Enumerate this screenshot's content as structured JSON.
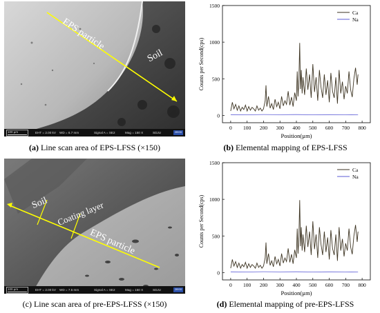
{
  "captions": [
    {
      "letter": "(a)",
      "text": " Line scan area of EPS-LFSS (×150)"
    },
    {
      "letter": "(b)",
      "text": " Elemental mapping of EPS-LFSS"
    },
    {
      "letter": "(c)",
      "text": " Line scan area of pre-EPS-LFSS (×150)",
      "letter_bold": false
    },
    {
      "letter": "(d)",
      "text": " Elemental mapping of pre-EPS-LFSS"
    }
  ],
  "sem_a": {
    "labels": {
      "particle": "EPS particle",
      "soil": "Soil"
    },
    "info": {
      "scale": "100 µm",
      "eht": "EHT = 2.00 kV",
      "wd": "WD = 6.7 mm",
      "signal": "Signal A = SE2",
      "mag": "Mag = 150 X",
      "org": "SDJU",
      "logo": "ZEISS"
    }
  },
  "sem_c": {
    "labels": {
      "soil": "Soil",
      "coating": "Coating layer",
      "particle": "EPS particle"
    },
    "info": {
      "scale": "100 µm",
      "eht": "EHT = 2.00 kV",
      "wd": "WD = 7.5 mm",
      "signal": "Signal A = SE2",
      "mag": "Mag = 150 X",
      "org": "SDJU",
      "logo": "ZEISS"
    }
  },
  "chart_data": [
    {
      "type": "line",
      "xlabel": "Position(µm)",
      "ylabel": "Counts per Second(cps)",
      "xlim": [
        -50,
        850
      ],
      "ylim": [
        -100,
        1500
      ],
      "xticks": [
        0,
        100,
        200,
        300,
        400,
        500,
        600,
        700,
        800
      ],
      "yticks": [
        0,
        500,
        1000,
        1500
      ],
      "legend_position": "top-right",
      "series": [
        {
          "name": "Ca",
          "color": "#3b3220",
          "x": [
            0,
            10,
            20,
            30,
            40,
            50,
            60,
            70,
            80,
            90,
            100,
            110,
            120,
            130,
            140,
            150,
            160,
            170,
            180,
            190,
            200,
            210,
            215,
            220,
            230,
            240,
            250,
            260,
            270,
            280,
            290,
            300,
            310,
            320,
            330,
            340,
            350,
            360,
            370,
            380,
            390,
            400,
            405,
            410,
            415,
            420,
            425,
            430,
            435,
            440,
            450,
            460,
            470,
            480,
            490,
            500,
            510,
            520,
            530,
            540,
            550,
            560,
            570,
            580,
            590,
            600,
            610,
            620,
            630,
            640,
            650,
            660,
            670,
            680,
            690,
            700,
            710,
            720,
            730,
            740,
            750,
            760,
            770,
            775
          ],
          "y": [
            60,
            180,
            90,
            150,
            70,
            130,
            60,
            110,
            80,
            140,
            60,
            120,
            70,
            110,
            90,
            60,
            130,
            70,
            100,
            60,
            90,
            200,
            410,
            120,
            260,
            100,
            160,
            80,
            220,
            120,
            180,
            90,
            260,
            130,
            200,
            150,
            330,
            140,
            250,
            120,
            310,
            200,
            600,
            260,
            480,
            990,
            360,
            620,
            300,
            520,
            280,
            640,
            350,
            560,
            240,
            700,
            320,
            520,
            200,
            620,
            380,
            240,
            560,
            280,
            480,
            180,
            580,
            330,
            240,
            520,
            160,
            620,
            300,
            460,
            220,
            400,
            300,
            600,
            350,
            250,
            500,
            650,
            420,
            560
          ]
        },
        {
          "name": "Na",
          "color": "#5b5bd6",
          "x": [
            0,
            100,
            200,
            300,
            400,
            500,
            600,
            700,
            775
          ],
          "y": [
            10,
            8,
            12,
            9,
            11,
            8,
            10,
            9,
            8
          ]
        }
      ]
    },
    {
      "type": "line",
      "xlabel": "Position(µm)",
      "ylabel": "Counts per Second(cps)",
      "xlim": [
        -50,
        850
      ],
      "ylim": [
        -100,
        1500
      ],
      "xticks": [
        0,
        100,
        200,
        300,
        400,
        500,
        600,
        700,
        800
      ],
      "yticks": [
        0,
        500,
        1000,
        1500
      ],
      "legend_position": "top-right",
      "series": [
        {
          "name": "Ca",
          "color": "#3b3220",
          "x": [
            0,
            10,
            20,
            30,
            40,
            50,
            60,
            70,
            80,
            90,
            100,
            110,
            120,
            130,
            140,
            150,
            160,
            170,
            180,
            190,
            200,
            210,
            215,
            220,
            230,
            240,
            250,
            260,
            270,
            280,
            290,
            300,
            310,
            320,
            330,
            340,
            350,
            360,
            370,
            380,
            390,
            400,
            405,
            410,
            415,
            420,
            425,
            430,
            435,
            440,
            450,
            460,
            470,
            480,
            490,
            500,
            510,
            520,
            530,
            540,
            550,
            560,
            570,
            580,
            590,
            600,
            610,
            620,
            630,
            640,
            650,
            660,
            670,
            680,
            690,
            700,
            710,
            720,
            730,
            740,
            750,
            760,
            770,
            775
          ],
          "y": [
            60,
            180,
            90,
            150,
            70,
            130,
            60,
            110,
            80,
            140,
            60,
            120,
            70,
            110,
            90,
            60,
            130,
            70,
            100,
            60,
            90,
            200,
            410,
            120,
            260,
            100,
            160,
            80,
            220,
            120,
            180,
            90,
            260,
            130,
            200,
            150,
            330,
            140,
            250,
            120,
            310,
            200,
            600,
            260,
            480,
            990,
            360,
            620,
            300,
            520,
            280,
            640,
            350,
            560,
            240,
            700,
            320,
            520,
            200,
            620,
            380,
            240,
            560,
            280,
            480,
            180,
            580,
            330,
            240,
            520,
            160,
            620,
            300,
            460,
            220,
            400,
            300,
            600,
            350,
            250,
            500,
            650,
            420,
            560
          ]
        },
        {
          "name": "Na",
          "color": "#5b5bd6",
          "x": [
            0,
            100,
            200,
            300,
            400,
            500,
            600,
            700,
            775
          ],
          "y": [
            10,
            8,
            12,
            9,
            11,
            8,
            10,
            9,
            8
          ]
        }
      ]
    }
  ]
}
